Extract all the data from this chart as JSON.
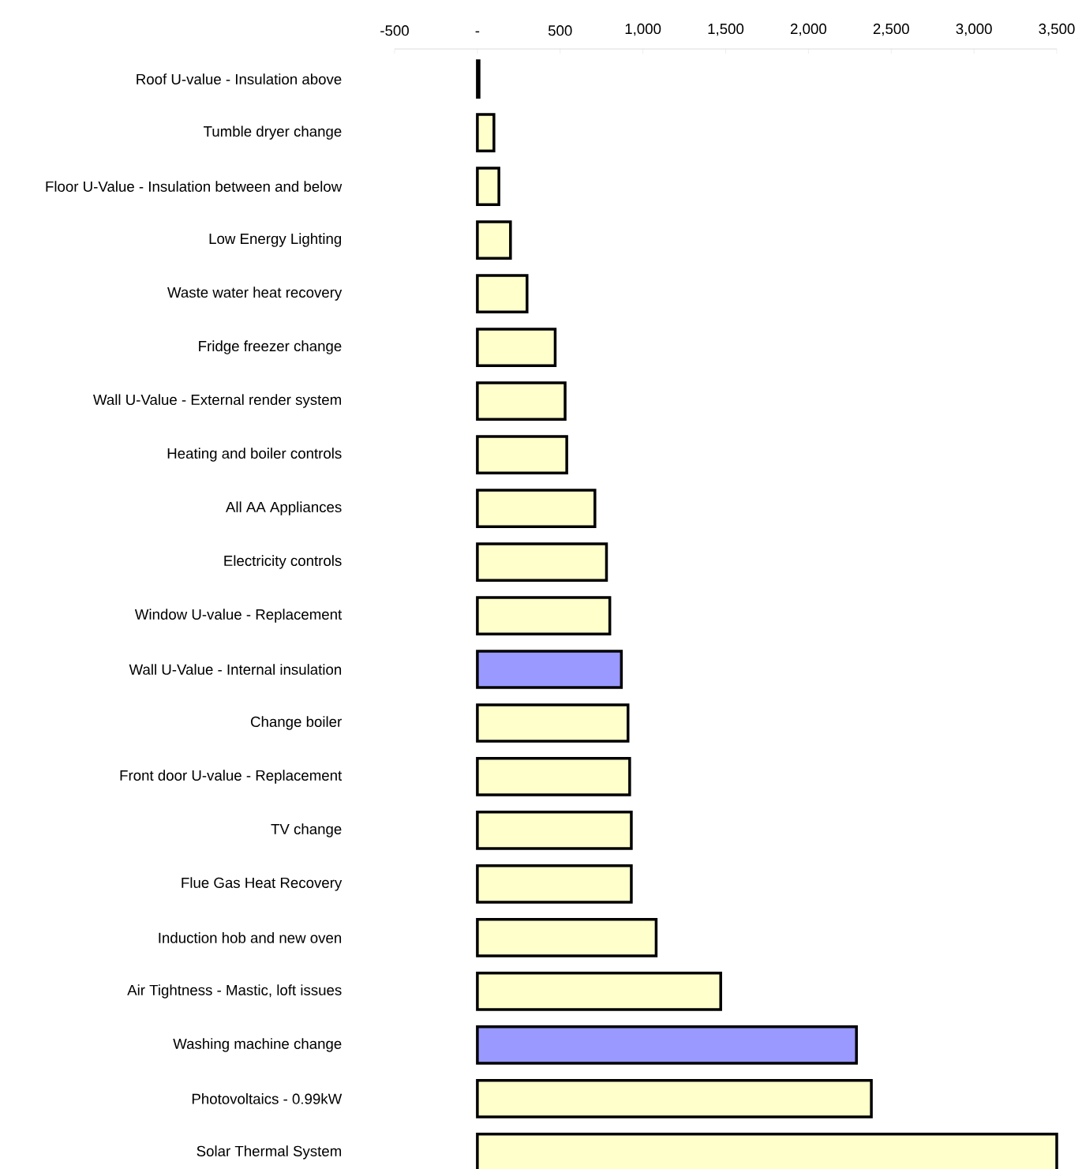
{
  "chart_data": {
    "type": "bar",
    "orientation": "horizontal",
    "categories": [
      "Roof U-value - Insulation above",
      "Tumble dryer change",
      "Floor U-Value - Insulation between and below",
      "Low Energy Lighting",
      "Waste water heat recovery",
      "Fridge freezer change",
      "Wall U-Value - External render system",
      "Heating and boiler controls",
      "All AA Appliances",
      "Electricity controls",
      "Window U-value - Replacement",
      "Wall U-Value - Internal insulation",
      "Change boiler",
      "Front door U-value - Replacement",
      "TV change",
      "Flue Gas Heat Recovery",
      "Induction hob and new oven",
      "Air Tightness - Mastic, loft issues",
      "Washing machine change",
      "Photovoltaics - 0.99kW",
      "Solar Thermal System"
    ],
    "values": [
      10,
      100,
      130,
      200,
      300,
      470,
      530,
      540,
      710,
      780,
      800,
      870,
      910,
      920,
      930,
      930,
      1080,
      1470,
      2290,
      2380,
      3500
    ],
    "colors": [
      "#ffffcc",
      "#ffffcc",
      "#ffffcc",
      "#ffffcc",
      "#ffffcc",
      "#ffffcc",
      "#ffffcc",
      "#ffffcc",
      "#ffffcc",
      "#ffffcc",
      "#ffffcc",
      "#9999ff",
      "#ffffcc",
      "#ffffcc",
      "#ffffcc",
      "#ffffcc",
      "#ffffcc",
      "#ffffcc",
      "#9999ff",
      "#ffffcc",
      "#ffffcc"
    ],
    "xlim": [
      -500,
      3500
    ],
    "xticks": [
      -500,
      {
        "value": 0,
        "label": "-"
      },
      500,
      {
        "value": 1000,
        "label": "1,000"
      },
      {
        "value": 1500,
        "label": "1,500"
      },
      {
        "value": 2000,
        "label": "2,000"
      },
      {
        "value": 2500,
        "label": "2,500"
      },
      {
        "value": 3000,
        "label": "3,000"
      },
      {
        "value": 3500,
        "label": "3,500"
      }
    ],
    "grid": false
  }
}
